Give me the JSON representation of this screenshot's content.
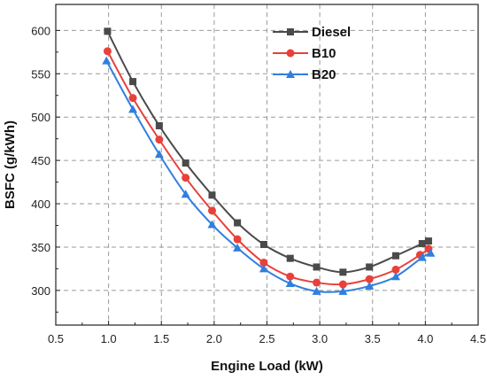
{
  "chart_data": {
    "type": "line",
    "title": "",
    "xlabel": "Engine Load (kW)",
    "ylabel": "BSFC (g/kWh)",
    "xlim": [
      0.5,
      4.5
    ],
    "ylim": [
      260,
      630
    ],
    "xticks": [
      "0.5",
      "1.0",
      "1.5",
      "2.0",
      "2.5",
      "3.0",
      "3.5",
      "4.0",
      "4.5"
    ],
    "yticks": [
      "300",
      "350",
      "400",
      "450",
      "500",
      "550",
      "600"
    ],
    "grid": true,
    "legend_position": "top-right",
    "series": [
      {
        "name": "Diesel",
        "color": "#4a4a4a",
        "marker": "square",
        "x": [
          0.99,
          1.23,
          1.48,
          1.73,
          1.98,
          2.22,
          2.47,
          2.72,
          2.97,
          3.22,
          3.47,
          3.72,
          3.97,
          4.03
        ],
        "y": [
          599,
          541,
          490,
          447,
          410,
          378,
          353,
          337,
          327,
          321,
          327,
          340,
          354,
          357
        ]
      },
      {
        "name": "B10",
        "color": "#e8413a",
        "marker": "circle",
        "x": [
          0.99,
          1.23,
          1.48,
          1.73,
          1.98,
          2.22,
          2.47,
          2.72,
          2.97,
          3.22,
          3.47,
          3.72,
          3.95,
          4.03
        ],
        "y": [
          576,
          522,
          474,
          430,
          392,
          359,
          332,
          316,
          309,
          307,
          313,
          324,
          341,
          348
        ]
      },
      {
        "name": "B20",
        "color": "#2f7fe0",
        "marker": "triangle",
        "x": [
          0.98,
          1.23,
          1.48,
          1.73,
          1.98,
          2.22,
          2.47,
          2.72,
          2.97,
          3.22,
          3.47,
          3.72,
          3.97,
          4.05
        ],
        "y": [
          565,
          509,
          457,
          411,
          376,
          349,
          325,
          308,
          299,
          299,
          305,
          316,
          338,
          343
        ]
      }
    ]
  }
}
